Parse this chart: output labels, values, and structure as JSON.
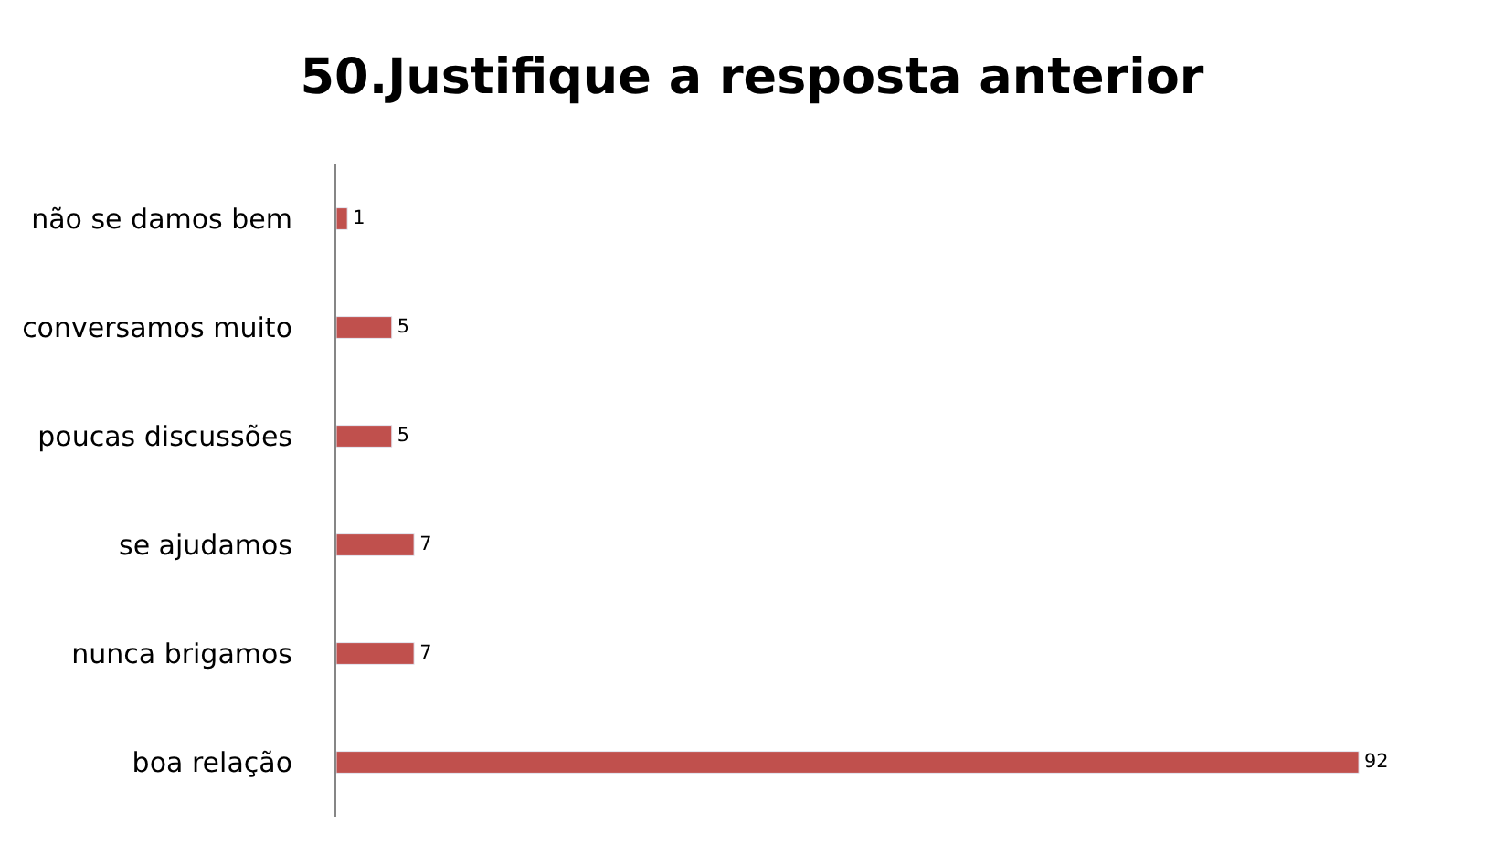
{
  "chart_data": {
    "type": "bar",
    "orientation": "horizontal",
    "title": "50.Justifique a resposta anterior",
    "categories": [
      "não se damos bem",
      "conversamos muito",
      "poucas discussões",
      "se ajudamos",
      "nunca brigamos",
      "boa relação"
    ],
    "values": [
      1,
      5,
      5,
      7,
      7,
      92
    ],
    "color": "#c0504d",
    "data_labels": true,
    "legend": false
  }
}
